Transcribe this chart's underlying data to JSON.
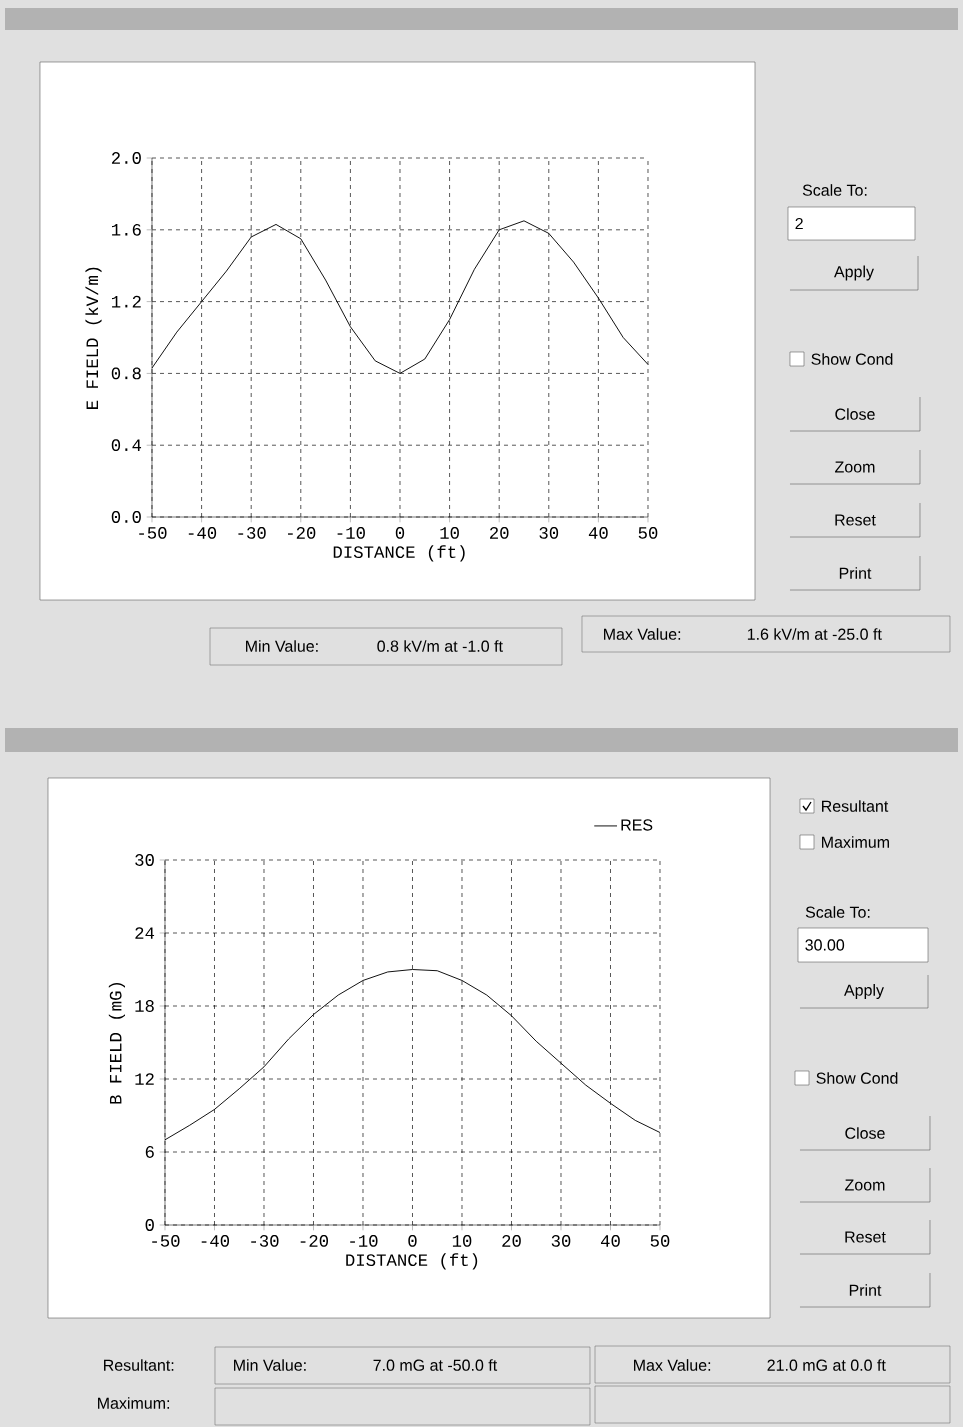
{
  "chart_data": [
    {
      "type": "line",
      "xlabel": "DISTANCE (ft)",
      "ylabel": "E FIELD (kV/m)",
      "x": [
        -50,
        -45,
        -40,
        -35,
        -30,
        -25,
        -20,
        -15,
        -10,
        -5,
        0,
        5,
        10,
        15,
        20,
        25,
        30,
        35,
        40,
        45,
        50
      ],
      "series": [
        {
          "color": "#000000",
          "values": [
            0.83,
            1.03,
            1.2,
            1.37,
            1.56,
            1.63,
            1.55,
            1.32,
            1.06,
            0.87,
            0.8,
            0.88,
            1.1,
            1.38,
            1.6,
            1.65,
            1.58,
            1.42,
            1.22,
            1.0,
            0.85
          ]
        }
      ],
      "xlim": [
        -50,
        50
      ],
      "xticks": [
        -50,
        -40,
        -30,
        -20,
        -10,
        0,
        10,
        20,
        30,
        40,
        50
      ],
      "ylim": [
        0,
        2
      ],
      "yticks": [
        {
          "value": 0,
          "label": "0.0"
        },
        {
          "value": 0.4,
          "label": "0.4"
        },
        {
          "value": 0.8,
          "label": "0.8"
        },
        {
          "value": 1.2,
          "label": "1.2"
        },
        {
          "value": 1.6,
          "label": "1.6"
        },
        {
          "value": 2,
          "label": "2.0"
        }
      ],
      "grid": true,
      "annotations": [
        "Scale To:",
        "2",
        "Apply",
        "Show Cond",
        "Close",
        "Zoom",
        "Reset",
        "Print",
        "Min Value:",
        "0.8 kV/m at -1.0 ft",
        "Max Value:",
        "1.6 kV/m at -25.0 ft"
      ]
    },
    {
      "type": "line",
      "xlabel": "DISTANCE (ft)",
      "ylabel": "B FIELD (mG)",
      "x": [
        -50,
        -45,
        -40,
        -35,
        -30,
        -25,
        -20,
        -15,
        -10,
        -5,
        0,
        5,
        10,
        15,
        20,
        25,
        30,
        35,
        40,
        45,
        50
      ],
      "series": [
        {
          "name": "RES",
          "color": "#000000",
          "values": [
            7.0,
            8.2,
            9.5,
            11.2,
            13.0,
            15.3,
            17.3,
            18.9,
            20.1,
            20.8,
            21.0,
            20.9,
            20.1,
            18.9,
            17.2,
            15.1,
            13.3,
            11.5,
            10.0,
            8.6,
            7.6
          ]
        }
      ],
      "xlim": [
        -50,
        50
      ],
      "xticks": [
        -50,
        -40,
        -30,
        -20,
        -10,
        0,
        10,
        20,
        30,
        40,
        50
      ],
      "ylim": [
        0,
        30
      ],
      "yticks": [
        0,
        6,
        12,
        18,
        24,
        30
      ],
      "grid": true,
      "legend": "top right",
      "annotations": [
        "Resultant",
        "Maximum",
        "Scale To:",
        "30.00",
        "Apply",
        "Show Cond",
        "Close",
        "Zoom",
        "Reset",
        "Print",
        "Resultant:",
        "Min Value:",
        "7.0 mG at -50.0 ft",
        "Max Value:",
        "21.0 mG at 0.0 ft",
        "Maximum:"
      ]
    }
  ]
}
